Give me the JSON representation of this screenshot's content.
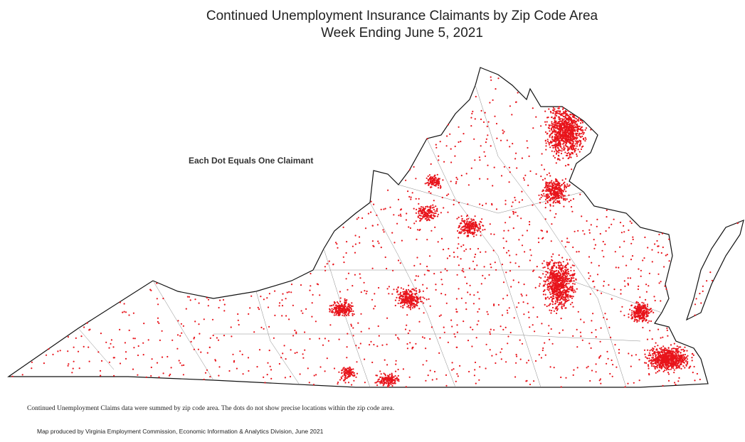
{
  "header": {
    "title": "Continued Unemployment Insurance Claimants by Zip Code Area",
    "subtitle": "Week Ending June 5, 2021"
  },
  "map": {
    "note": "Each Dot Equals One Claimant"
  },
  "footer": {
    "disclaimer": "Continued Unemployment Claims data were summed by zip code area. The dots do not show precise locations within the zip code area.",
    "credit": "Map produced by Virginia Employment Commission, Economic Information & Analytics Division,  June 2021"
  }
}
